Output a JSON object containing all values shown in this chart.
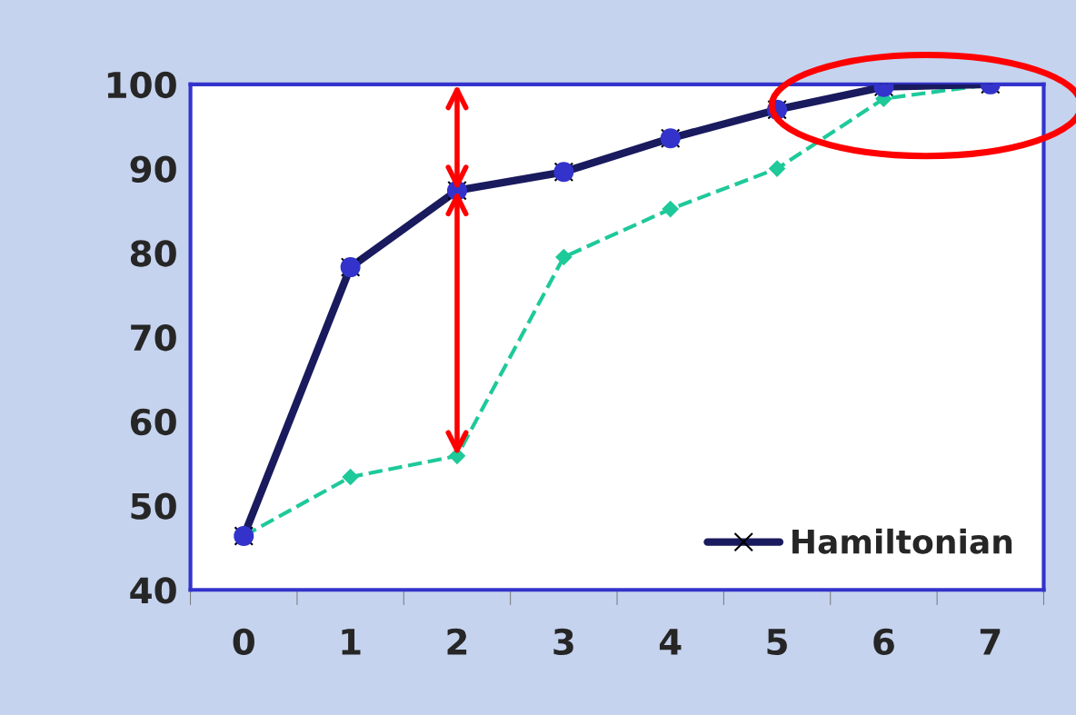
{
  "chart_data": {
    "type": "line",
    "categories": [
      "0",
      "1",
      "2",
      "3",
      "4",
      "5",
      "6",
      "7"
    ],
    "series": [
      {
        "color": "#1ec99a",
        "values": [
          46.4,
          53.4,
          55.9,
          79.5,
          85.2,
          90.0,
          98.3,
          100
        ],
        "marker": "diamond",
        "line_style": "dashed"
      },
      {
        "name": "Hamiltonian",
        "color": "#1a1a5e",
        "values": [
          46.4,
          78.3,
          87.4,
          89.6,
          93.6,
          97.0,
          99.7,
          100
        ],
        "marker": "cross",
        "line_style": "solid"
      },
      {
        "type": "scatter",
        "color": "#3333cc",
        "values": [
          46.4,
          78.3,
          87.4,
          89.6,
          93.6,
          97.0,
          99.7,
          100
        ],
        "marker": "circle"
      }
    ],
    "ylim": [
      40,
      100
    ],
    "yticks": [
      40,
      50,
      60,
      70,
      80,
      90,
      100
    ],
    "grid": false,
    "legend": "bottom right"
  }
}
